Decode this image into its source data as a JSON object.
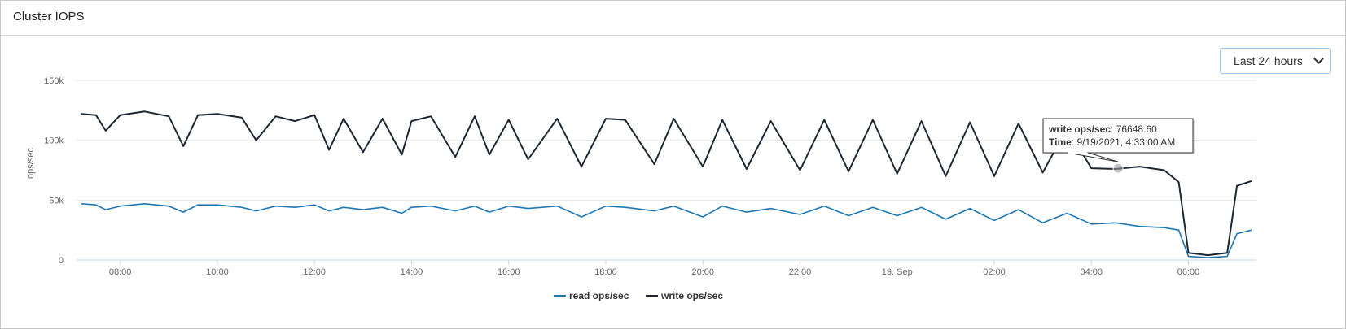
{
  "panel": {
    "title": "Cluster IOPS"
  },
  "range_select": {
    "selected": "Last 24 hours"
  },
  "colors": {
    "read": "#1f77b4",
    "write": "#1c2732",
    "grid": "#e6e6e6",
    "axis": "#c8d6e8"
  },
  "chart_data": {
    "type": "line",
    "title": "",
    "xlabel": "",
    "ylabel": "ops/sec",
    "ylim": [
      0,
      150000
    ],
    "yticks": [
      0,
      50000,
      100000,
      150000
    ],
    "ytick_labels": [
      "0",
      "50k",
      "100k",
      "150k"
    ],
    "x_unit": "hours from 2021-09-18 00:00",
    "xlim": [
      7.1,
      31.4
    ],
    "xticks": [
      8,
      10,
      12,
      14,
      16,
      18,
      20,
      22,
      24,
      26,
      28,
      30
    ],
    "xtick_labels": [
      "08:00",
      "10:00",
      "12:00",
      "14:00",
      "16:00",
      "18:00",
      "20:00",
      "22:00",
      "19. Sep",
      "02:00",
      "04:00",
      "06:00"
    ],
    "grid": true,
    "legend_position": "bottom-center",
    "x": [
      7.2,
      7.5,
      7.7,
      8.0,
      8.5,
      9.0,
      9.3,
      9.6,
      10.0,
      10.5,
      10.8,
      11.2,
      11.6,
      12.0,
      12.3,
      12.6,
      13.0,
      13.4,
      13.8,
      14.0,
      14.4,
      14.9,
      15.3,
      15.6,
      16.0,
      16.4,
      17.0,
      17.5,
      18.0,
      18.4,
      19.0,
      19.4,
      20.0,
      20.4,
      20.9,
      21.4,
      22.0,
      22.5,
      23.0,
      23.5,
      24.0,
      24.5,
      25.0,
      25.5,
      26.0,
      26.5,
      27.0,
      27.5,
      28.0,
      28.5,
      29.0,
      29.5,
      29.8,
      30.0,
      30.4,
      30.8,
      31.0,
      31.3
    ],
    "series": [
      {
        "name": "read ops/sec",
        "values": [
          47000,
          46000,
          42000,
          45000,
          47000,
          45000,
          40000,
          46000,
          46000,
          44000,
          41000,
          45000,
          44000,
          46000,
          41000,
          44000,
          42000,
          44000,
          39000,
          44000,
          45000,
          41000,
          45000,
          40000,
          45000,
          43000,
          45000,
          36000,
          45000,
          44000,
          41000,
          45000,
          36000,
          45000,
          40000,
          43000,
          38000,
          45000,
          37000,
          44000,
          37000,
          44000,
          34000,
          43000,
          33000,
          42000,
          31000,
          39000,
          30000,
          31000,
          28000,
          27000,
          25000,
          3000,
          2000,
          3000,
          22000,
          25000
        ]
      },
      {
        "name": "write ops/sec",
        "values": [
          122000,
          121000,
          108000,
          121000,
          124000,
          120000,
          95000,
          121000,
          122000,
          119000,
          100000,
          120000,
          116000,
          121000,
          92000,
          118000,
          90000,
          118000,
          88000,
          116000,
          120000,
          86000,
          120000,
          88000,
          117000,
          84000,
          118000,
          78000,
          118000,
          117000,
          80000,
          118000,
          78000,
          117000,
          76000,
          116000,
          75000,
          117000,
          74000,
          117000,
          72000,
          116000,
          70000,
          115000,
          70000,
          114000,
          73000,
          110000,
          76648.6,
          76000,
          78000,
          75000,
          65000,
          6000,
          4000,
          6000,
          62000,
          66000
        ]
      }
    ],
    "tooltip": {
      "series_label": "write ops/sec",
      "value_text": "76648.60",
      "time_label": "Time",
      "time_text": "9/19/2021, 4:33:00 AM",
      "x": 28.55,
      "y": 76648.6
    }
  }
}
